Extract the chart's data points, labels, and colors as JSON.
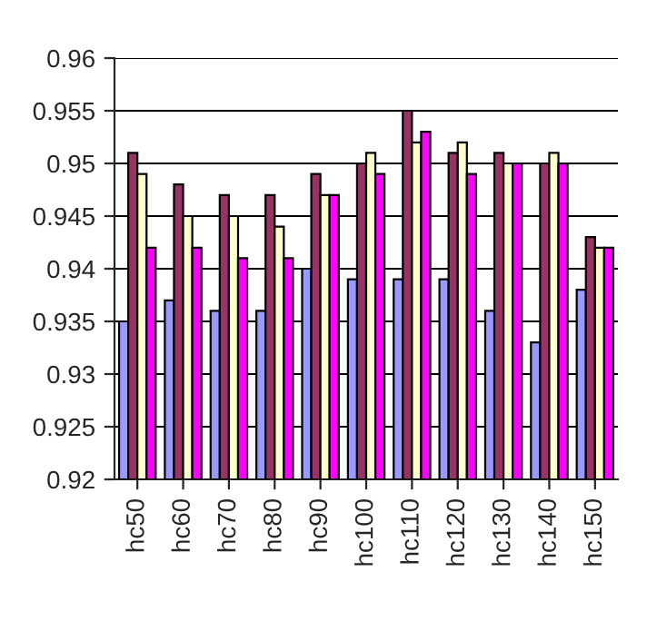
{
  "chart_data": {
    "type": "bar",
    "categories": [
      "hc50",
      "hc60",
      "hc70",
      "hc80",
      "hc90",
      "hc100",
      "hc110",
      "hc120",
      "hc130",
      "hc140",
      "hc150"
    ],
    "series": [
      {
        "color": "#9999ff",
        "values": [
          0.935,
          0.937,
          0.936,
          0.936,
          0.94,
          0.939,
          0.939,
          0.939,
          0.936,
          0.933,
          0.938
        ]
      },
      {
        "color": "#993366",
        "values": [
          0.951,
          0.948,
          0.947,
          0.947,
          0.949,
          0.95,
          0.955,
          0.951,
          0.951,
          0.95,
          0.943
        ]
      },
      {
        "color": "#ffffcc",
        "values": [
          0.949,
          0.945,
          0.945,
          0.944,
          0.947,
          0.951,
          0.952,
          0.952,
          0.95,
          0.951,
          0.942
        ]
      },
      {
        "color": "#ff00ff",
        "values": [
          0.942,
          0.942,
          0.941,
          0.941,
          0.947,
          0.949,
          0.953,
          0.949,
          0.95,
          0.95,
          0.942
        ]
      }
    ],
    "ylim": [
      0.92,
      0.96
    ],
    "yticks": [
      0.92,
      0.925,
      0.93,
      0.935,
      0.94,
      0.945,
      0.95,
      0.955,
      0.96
    ],
    "grid": "y",
    "legend": false
  }
}
